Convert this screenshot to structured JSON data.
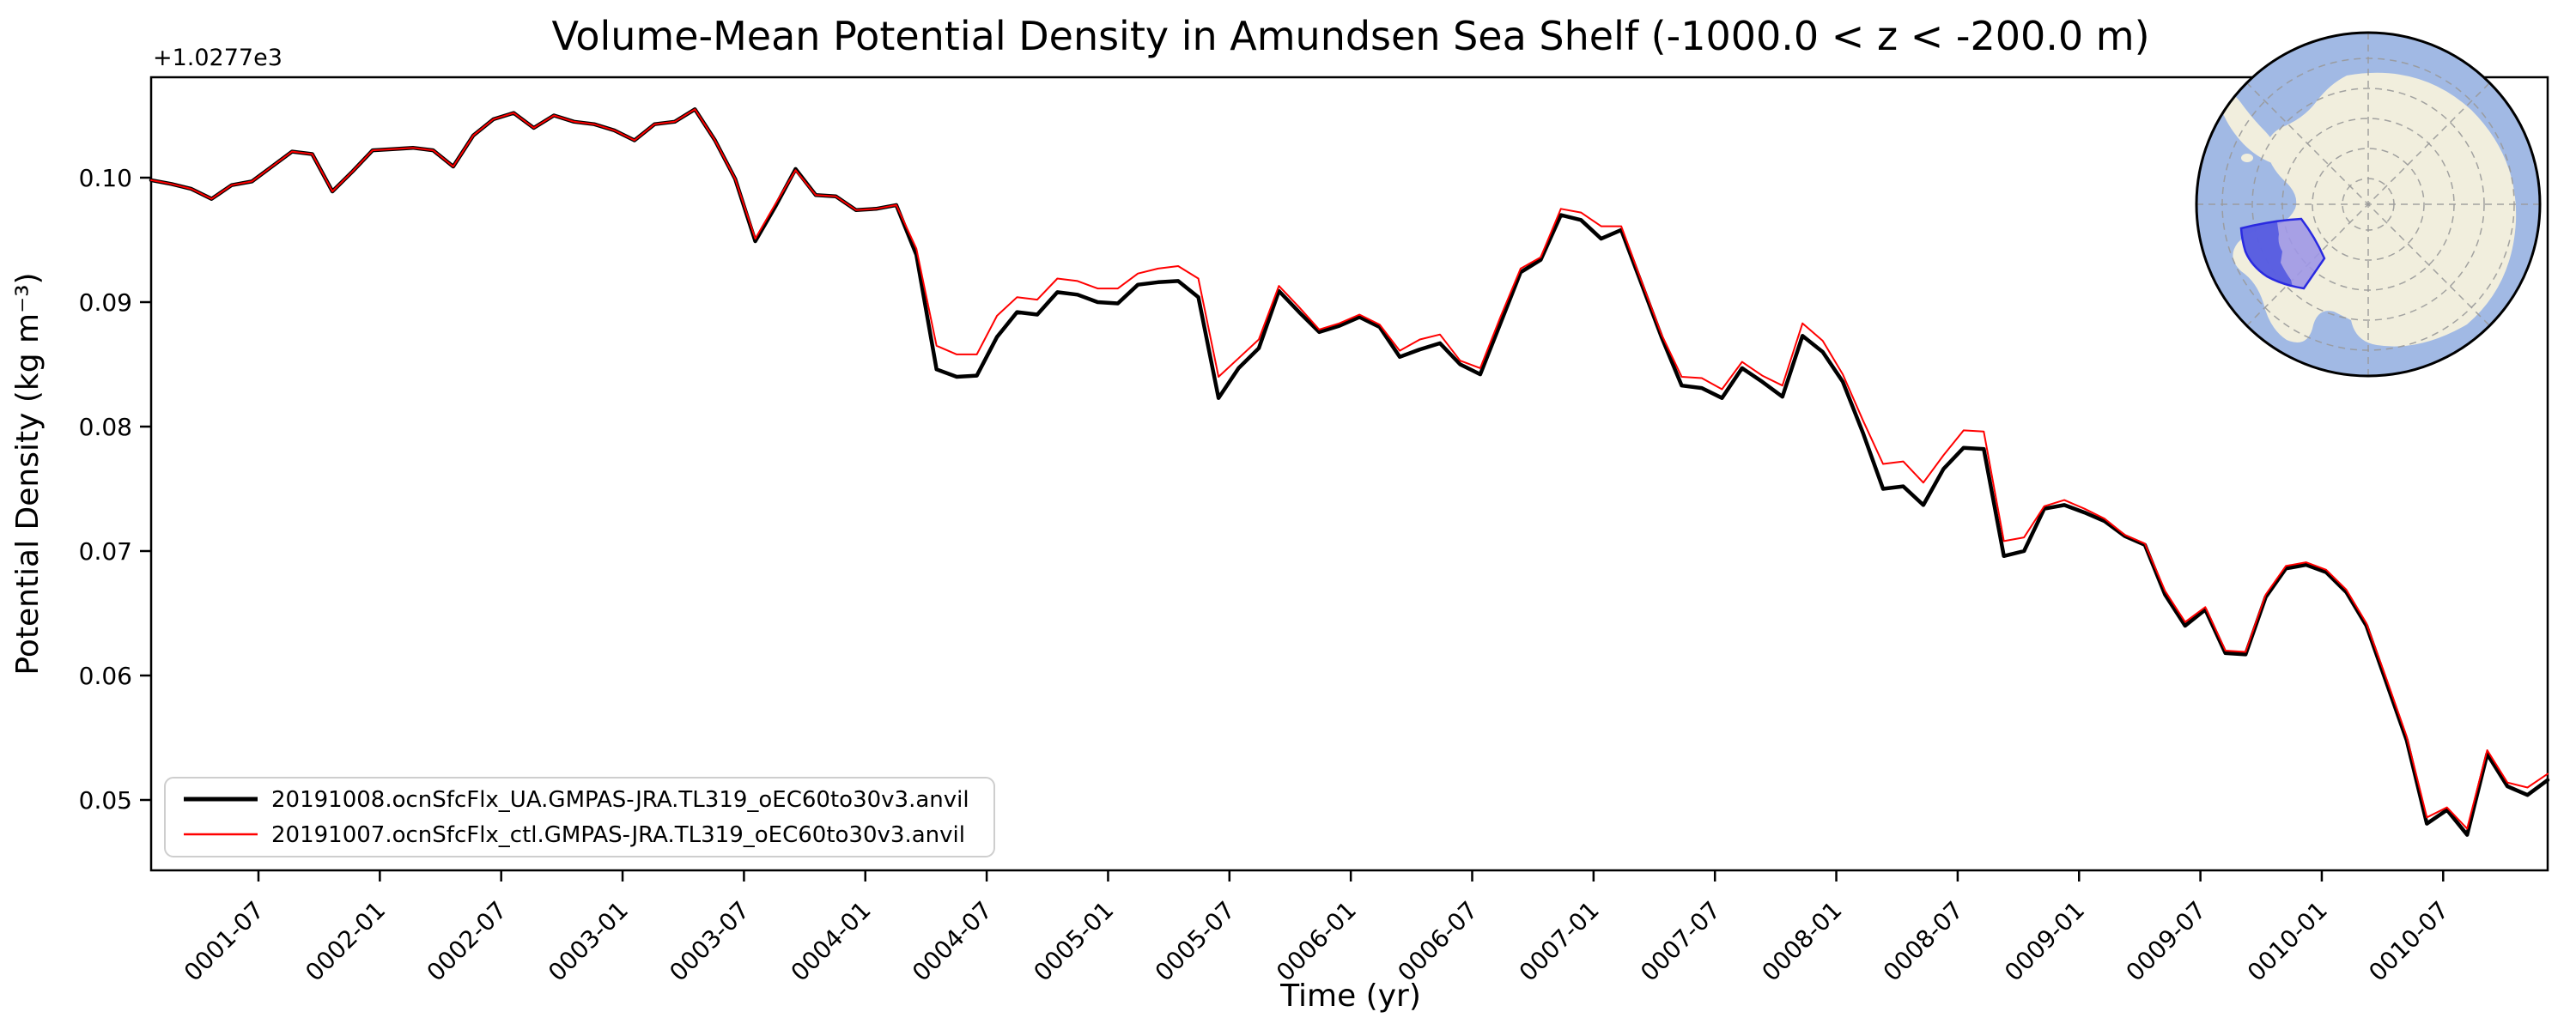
{
  "figure": {
    "title": "Volume-Mean Potential Density in Amundsen Sea Shelf (-1000.0 < z < -200.0 m)",
    "xlabel": "Time (yr)",
    "ylabel": "Potential Density (kg m⁻³)",
    "y_offset_label": "+1.0277e3"
  },
  "chart_data": {
    "type": "line",
    "title": "Volume-Mean Potential Density in Amundsen Sea Shelf (-1000.0 < z < -200.0 m)",
    "xlabel": "Time (yr)",
    "ylabel": "Potential Density (kg m⁻³)",
    "y_axis_offset_label": "+1.0277e3",
    "y_axis_offset_value": 1027.7,
    "x_start": "0001-01",
    "x_end": "0010-12",
    "x_points": 120,
    "x_cadence": "monthly",
    "x_tick_labels": [
      "0001-07",
      "0002-01",
      "0002-07",
      "0003-01",
      "0003-07",
      "0004-01",
      "0004-07",
      "0005-01",
      "0005-07",
      "0006-01",
      "0006-07",
      "0007-01",
      "0007-07",
      "0008-01",
      "0008-07",
      "0009-01",
      "0009-07",
      "0010-01",
      "0010-07"
    ],
    "y_tick_labels": [
      "0.05",
      "0.06",
      "0.07",
      "0.08",
      "0.09",
      "0.10"
    ],
    "y_tick_values": [
      0.05,
      0.06,
      0.07,
      0.08,
      0.09,
      0.1
    ],
    "ylim": [
      0.0443,
      0.1081
    ],
    "grid": false,
    "legend_position": "lower-left",
    "series": [
      {
        "name": "20191008.ocnSfcFlx_UA.GMPAS-JRA.TL319_oEC60to30v3.anvil",
        "color": "#000000",
        "linewidth": 4.5,
        "values": [
          0.0998,
          0.0995,
          0.0991,
          0.0983,
          0.0994,
          0.0997,
          0.1009,
          0.1021,
          0.1019,
          0.0989,
          0.1005,
          0.1022,
          0.1023,
          0.1024,
          0.1022,
          0.1009,
          0.1034,
          0.1047,
          0.1052,
          0.104,
          0.105,
          0.1045,
          0.1043,
          0.1038,
          0.103,
          0.1043,
          0.1045,
          0.1055,
          0.103,
          0.0999,
          0.0949,
          0.0977,
          0.1007,
          0.0986,
          0.0985,
          0.0974,
          0.0975,
          0.0978,
          0.0938,
          0.0846,
          0.084,
          0.0841,
          0.0872,
          0.0892,
          0.089,
          0.0908,
          0.0906,
          0.09,
          0.0899,
          0.0914,
          0.0916,
          0.0917,
          0.0904,
          0.0823,
          0.0847,
          0.0863,
          0.0909,
          0.0892,
          0.0876,
          0.0881,
          0.0888,
          0.088,
          0.0856,
          0.0862,
          0.0867,
          0.085,
          0.0842,
          0.0883,
          0.0924,
          0.0934,
          0.097,
          0.0966,
          0.0951,
          0.0958,
          0.0915,
          0.0872,
          0.0833,
          0.0831,
          0.0823,
          0.0847,
          0.0836,
          0.0824,
          0.0873,
          0.086,
          0.0836,
          0.0795,
          0.075,
          0.0752,
          0.0737,
          0.0766,
          0.0783,
          0.0782,
          0.0696,
          0.07,
          0.0734,
          0.0737,
          0.0731,
          0.0724,
          0.0712,
          0.0705,
          0.0665,
          0.064,
          0.0653,
          0.0618,
          0.0617,
          0.0663,
          0.0686,
          0.0689,
          0.0683,
          0.0667,
          0.064,
          0.0594,
          0.0548,
          0.0481,
          0.0492,
          0.0472,
          0.0537,
          0.0511,
          0.0504,
          0.0516
        ]
      },
      {
        "name": "20191007.ocnSfcFlx_ctl.GMPAS-JRA.TL319_oEC60to30v3.anvil",
        "color": "#ff0000",
        "linewidth": 2,
        "values": [
          0.0998,
          0.0995,
          0.0991,
          0.0983,
          0.0994,
          0.0997,
          0.1009,
          0.1021,
          0.1019,
          0.0989,
          0.1005,
          0.1022,
          0.1023,
          0.1024,
          0.1022,
          0.1009,
          0.1034,
          0.1047,
          0.1052,
          0.104,
          0.105,
          0.1045,
          0.1043,
          0.1038,
          0.103,
          0.1043,
          0.1045,
          0.1055,
          0.103,
          0.0999,
          0.0951,
          0.0979,
          0.1006,
          0.0986,
          0.0985,
          0.0974,
          0.0975,
          0.0978,
          0.0943,
          0.0865,
          0.0858,
          0.0858,
          0.0889,
          0.0904,
          0.0902,
          0.0919,
          0.0917,
          0.0911,
          0.0911,
          0.0923,
          0.0927,
          0.0929,
          0.0919,
          0.084,
          0.0855,
          0.087,
          0.0913,
          0.0896,
          0.0878,
          0.0883,
          0.089,
          0.0882,
          0.0861,
          0.087,
          0.0874,
          0.0853,
          0.0847,
          0.0888,
          0.0927,
          0.0936,
          0.0975,
          0.0972,
          0.0961,
          0.0961,
          0.0917,
          0.0874,
          0.084,
          0.0839,
          0.083,
          0.0852,
          0.0841,
          0.0833,
          0.0883,
          0.0869,
          0.0842,
          0.0805,
          0.077,
          0.0772,
          0.0755,
          0.0777,
          0.0797,
          0.0796,
          0.0708,
          0.0711,
          0.0736,
          0.0741,
          0.0734,
          0.0726,
          0.0713,
          0.0706,
          0.0668,
          0.0643,
          0.0655,
          0.062,
          0.0619,
          0.0665,
          0.0688,
          0.0691,
          0.0685,
          0.0669,
          0.0642,
          0.0597,
          0.0551,
          0.0486,
          0.0494,
          0.0477,
          0.054,
          0.0514,
          0.051,
          0.0521
        ]
      }
    ]
  },
  "legend": {
    "items": [
      {
        "label": "20191008.ocnSfcFlx_UA.GMPAS-JRA.TL319_oEC60to30v3.anvil",
        "color": "#000000",
        "linewidth": 5
      },
      {
        "label": "20191007.ocnSfcFlx_ctl.GMPAS-JRA.TL319_oEC60to30v3.anvil",
        "color": "#ff0000",
        "linewidth": 2.5
      }
    ]
  },
  "inset_map": {
    "description": "south-polar-stereographic-globe-with-amundsen-sea-shelf-region-highlighted",
    "ocean_color": "#a1b9e4",
    "land_color": "#f1eedd",
    "graticule_color": "#999999",
    "region_fill_light": "#9e97e6",
    "region_fill_dark": "#4d55e0",
    "region_outline": "#2a2ae0",
    "border_color": "#000000"
  }
}
